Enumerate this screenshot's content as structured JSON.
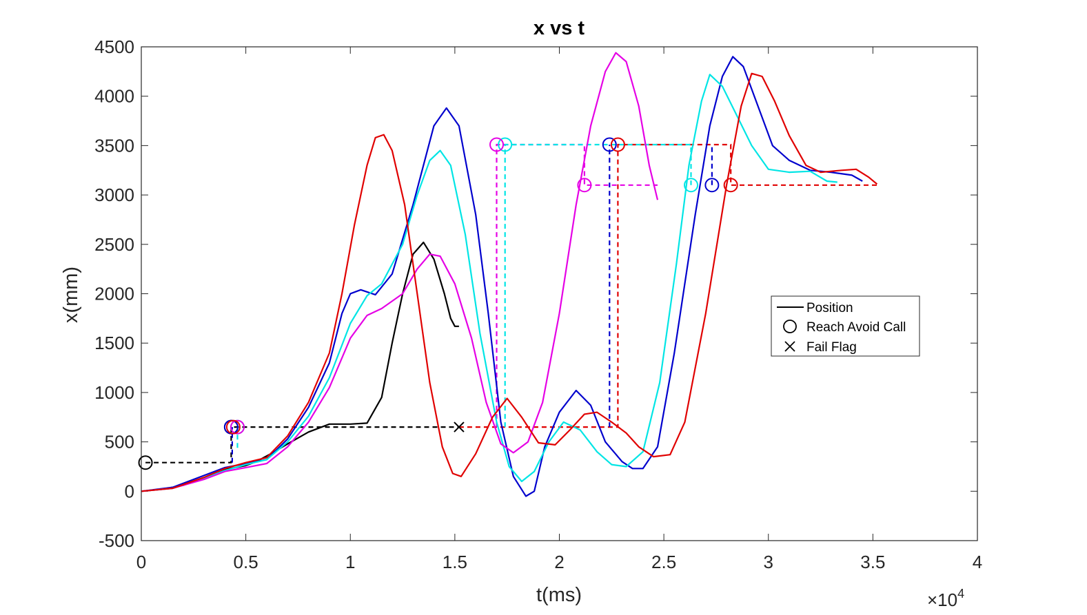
{
  "chart_data": {
    "type": "line",
    "title": "x vs t",
    "xlabel": "t(ms)",
    "ylabel": "x(mm)",
    "x_multiplier_base": "×10",
    "x_multiplier_exp": "4",
    "xlim": [
      0,
      4
    ],
    "ylim": [
      -500,
      4500
    ],
    "xticks": [
      0,
      0.5,
      1,
      1.5,
      2,
      2.5,
      3,
      3.5,
      4
    ],
    "xtick_labels": [
      "0",
      "0.5",
      "1",
      "1.5",
      "2",
      "2.5",
      "3",
      "3.5",
      "4"
    ],
    "yticks": [
      -500,
      0,
      500,
      1000,
      1500,
      2000,
      2500,
      3000,
      3500,
      4000,
      4500
    ],
    "ytick_labels": [
      "-500",
      "0",
      "500",
      "1000",
      "1500",
      "2000",
      "2500",
      "3000",
      "3500",
      "4000",
      "4500"
    ],
    "legend": {
      "placement": "center-right",
      "entries": [
        {
          "label": "Position",
          "marker": "line"
        },
        {
          "label": "Reach Avoid Call",
          "marker": "circle"
        },
        {
          "label": "Fail Flag",
          "marker": "cross"
        }
      ]
    },
    "series": [
      {
        "name": "black",
        "color": "#000000",
        "points": [
          [
            0,
            0
          ],
          [
            0.1,
            20
          ],
          [
            0.2,
            60
          ],
          [
            0.3,
            130
          ],
          [
            0.4,
            220
          ],
          [
            0.5,
            260
          ],
          [
            0.55,
            300
          ],
          [
            0.62,
            380
          ],
          [
            0.7,
            480
          ],
          [
            0.8,
            600
          ],
          [
            0.9,
            680
          ],
          [
            1.0,
            680
          ],
          [
            1.08,
            690
          ],
          [
            1.15,
            950
          ],
          [
            1.2,
            1500
          ],
          [
            1.25,
            2000
          ],
          [
            1.3,
            2400
          ],
          [
            1.35,
            2520
          ],
          [
            1.4,
            2350
          ],
          [
            1.45,
            2000
          ],
          [
            1.48,
            1750
          ],
          [
            1.5,
            1670
          ],
          [
            1.52,
            1670
          ]
        ],
        "calls": [
          [
            0.02,
            290
          ],
          [
            0.43,
            650
          ]
        ],
        "fail": [
          [
            1.52,
            650
          ]
        ]
      },
      {
        "name": "blue",
        "color": "#0000CD",
        "points": [
          [
            0,
            0
          ],
          [
            0.15,
            40
          ],
          [
            0.3,
            160
          ],
          [
            0.4,
            240
          ],
          [
            0.5,
            280
          ],
          [
            0.6,
            320
          ],
          [
            0.7,
            530
          ],
          [
            0.8,
            850
          ],
          [
            0.9,
            1300
          ],
          [
            0.96,
            1800
          ],
          [
            1.0,
            2000
          ],
          [
            1.05,
            2040
          ],
          [
            1.12,
            1990
          ],
          [
            1.2,
            2200
          ],
          [
            1.3,
            2900
          ],
          [
            1.4,
            3700
          ],
          [
            1.46,
            3880
          ],
          [
            1.52,
            3700
          ],
          [
            1.6,
            2800
          ],
          [
            1.66,
            1800
          ],
          [
            1.72,
            700
          ],
          [
            1.78,
            150
          ],
          [
            1.84,
            -50
          ],
          [
            1.88,
            0
          ],
          [
            1.93,
            450
          ],
          [
            2.0,
            800
          ],
          [
            2.08,
            1020
          ],
          [
            2.15,
            870
          ],
          [
            2.22,
            500
          ],
          [
            2.3,
            300
          ],
          [
            2.35,
            230
          ],
          [
            2.4,
            230
          ],
          [
            2.47,
            450
          ],
          [
            2.55,
            1400
          ],
          [
            2.65,
            2800
          ],
          [
            2.72,
            3700
          ],
          [
            2.78,
            4200
          ],
          [
            2.83,
            4400
          ],
          [
            2.88,
            4300
          ],
          [
            2.95,
            3900
          ],
          [
            3.02,
            3500
          ],
          [
            3.1,
            3350
          ],
          [
            3.2,
            3250
          ],
          [
            3.3,
            3230
          ],
          [
            3.4,
            3200
          ],
          [
            3.45,
            3140
          ]
        ],
        "calls": [
          [
            0.43,
            650
          ],
          [
            2.24,
            3510
          ],
          [
            2.73,
            3100
          ]
        ]
      },
      {
        "name": "cyan",
        "color": "#00E5E5",
        "points": [
          [
            0,
            0
          ],
          [
            0.15,
            30
          ],
          [
            0.3,
            130
          ],
          [
            0.4,
            210
          ],
          [
            0.5,
            270
          ],
          [
            0.6,
            320
          ],
          [
            0.7,
            500
          ],
          [
            0.8,
            760
          ],
          [
            0.9,
            1150
          ],
          [
            1.0,
            1700
          ],
          [
            1.08,
            1980
          ],
          [
            1.15,
            2100
          ],
          [
            1.25,
            2500
          ],
          [
            1.32,
            3000
          ],
          [
            1.38,
            3350
          ],
          [
            1.43,
            3450
          ],
          [
            1.48,
            3300
          ],
          [
            1.55,
            2600
          ],
          [
            1.62,
            1600
          ],
          [
            1.7,
            700
          ],
          [
            1.76,
            250
          ],
          [
            1.82,
            100
          ],
          [
            1.88,
            200
          ],
          [
            1.95,
            500
          ],
          [
            2.02,
            700
          ],
          [
            2.1,
            620
          ],
          [
            2.18,
            400
          ],
          [
            2.25,
            270
          ],
          [
            2.32,
            250
          ],
          [
            2.4,
            400
          ],
          [
            2.48,
            1100
          ],
          [
            2.56,
            2300
          ],
          [
            2.62,
            3300
          ],
          [
            2.68,
            3950
          ],
          [
            2.72,
            4220
          ],
          [
            2.78,
            4100
          ],
          [
            2.85,
            3800
          ],
          [
            2.92,
            3500
          ],
          [
            3.0,
            3260
          ],
          [
            3.1,
            3230
          ],
          [
            3.2,
            3240
          ],
          [
            3.28,
            3140
          ],
          [
            3.33,
            3130
          ]
        ],
        "calls": [
          [
            0.46,
            650
          ],
          [
            1.74,
            3510
          ],
          [
            2.63,
            3100
          ]
        ]
      },
      {
        "name": "magenta",
        "color": "#E500E5",
        "points": [
          [
            0,
            0
          ],
          [
            0.15,
            30
          ],
          [
            0.3,
            120
          ],
          [
            0.4,
            200
          ],
          [
            0.5,
            240
          ],
          [
            0.6,
            280
          ],
          [
            0.7,
            450
          ],
          [
            0.8,
            700
          ],
          [
            0.9,
            1050
          ],
          [
            1.0,
            1550
          ],
          [
            1.08,
            1780
          ],
          [
            1.15,
            1850
          ],
          [
            1.25,
            2000
          ],
          [
            1.32,
            2250
          ],
          [
            1.38,
            2400
          ],
          [
            1.43,
            2380
          ],
          [
            1.5,
            2100
          ],
          [
            1.58,
            1550
          ],
          [
            1.65,
            900
          ],
          [
            1.72,
            480
          ],
          [
            1.78,
            390
          ],
          [
            1.85,
            500
          ],
          [
            1.92,
            900
          ],
          [
            2.0,
            1800
          ],
          [
            2.08,
            2900
          ],
          [
            2.15,
            3700
          ],
          [
            2.22,
            4250
          ],
          [
            2.27,
            4440
          ],
          [
            2.32,
            4350
          ],
          [
            2.38,
            3900
          ],
          [
            2.43,
            3300
          ],
          [
            2.47,
            2950
          ]
        ],
        "calls": [
          [
            0.46,
            650
          ],
          [
            1.7,
            3510
          ],
          [
            2.12,
            3100
          ]
        ]
      },
      {
        "name": "red",
        "color": "#E00000",
        "points": [
          [
            0,
            0
          ],
          [
            0.15,
            30
          ],
          [
            0.3,
            140
          ],
          [
            0.4,
            230
          ],
          [
            0.5,
            290
          ],
          [
            0.6,
            340
          ],
          [
            0.7,
            560
          ],
          [
            0.8,
            900
          ],
          [
            0.9,
            1400
          ],
          [
            0.96,
            2000
          ],
          [
            1.02,
            2700
          ],
          [
            1.08,
            3300
          ],
          [
            1.12,
            3580
          ],
          [
            1.16,
            3610
          ],
          [
            1.2,
            3450
          ],
          [
            1.26,
            2900
          ],
          [
            1.32,
            2000
          ],
          [
            1.38,
            1100
          ],
          [
            1.44,
            450
          ],
          [
            1.49,
            180
          ],
          [
            1.53,
            150
          ],
          [
            1.6,
            380
          ],
          [
            1.68,
            750
          ],
          [
            1.75,
            940
          ],
          [
            1.82,
            750
          ],
          [
            1.9,
            490
          ],
          [
            1.98,
            470
          ],
          [
            2.05,
            620
          ],
          [
            2.12,
            780
          ],
          [
            2.18,
            800
          ],
          [
            2.25,
            700
          ],
          [
            2.32,
            590
          ],
          [
            2.38,
            450
          ],
          [
            2.45,
            350
          ],
          [
            2.53,
            370
          ],
          [
            2.6,
            700
          ],
          [
            2.7,
            1800
          ],
          [
            2.8,
            3100
          ],
          [
            2.87,
            3900
          ],
          [
            2.92,
            4230
          ],
          [
            2.97,
            4200
          ],
          [
            3.03,
            3950
          ],
          [
            3.1,
            3600
          ],
          [
            3.18,
            3300
          ],
          [
            3.25,
            3230
          ],
          [
            3.35,
            3250
          ],
          [
            3.42,
            3260
          ],
          [
            3.48,
            3180
          ],
          [
            3.52,
            3110
          ]
        ],
        "calls": [
          [
            0.44,
            650
          ],
          [
            2.28,
            3510
          ],
          [
            2.82,
            3100
          ]
        ]
      }
    ],
    "dashed_guides": [
      {
        "color": "#000000",
        "path": [
          [
            0.02,
            290
          ],
          [
            0.43,
            290
          ],
          [
            0.43,
            650
          ],
          [
            1.52,
            650
          ]
        ]
      },
      {
        "color": "#0000CD",
        "path": [
          [
            0.435,
            290
          ],
          [
            0.435,
            650
          ]
        ]
      },
      {
        "color": "#E00000",
        "path": [
          [
            1.52,
            650
          ],
          [
            2.28,
            650
          ],
          [
            2.28,
            3510
          ],
          [
            2.82,
            3510
          ],
          [
            2.82,
            3100
          ],
          [
            3.52,
            3100
          ]
        ]
      },
      {
        "color": "#0000CD",
        "path": [
          [
            2.24,
            650
          ],
          [
            2.24,
            3510
          ]
        ]
      },
      {
        "color": "#0000CD",
        "path": [
          [
            2.73,
            3100
          ],
          [
            2.73,
            3510
          ]
        ]
      },
      {
        "color": "#E500E5",
        "path": [
          [
            1.7,
            650
          ],
          [
            1.7,
            3510
          ],
          [
            2.12,
            3510
          ],
          [
            2.12,
            3100
          ],
          [
            2.47,
            3100
          ]
        ]
      },
      {
        "color": "#00E5E5",
        "path": [
          [
            1.74,
            650
          ],
          [
            1.74,
            3510
          ],
          [
            2.63,
            3510
          ],
          [
            2.63,
            3100
          ]
        ]
      },
      {
        "color": "#00E5E5",
        "path": [
          [
            0.46,
            440
          ],
          [
            0.46,
            650
          ]
        ]
      }
    ]
  }
}
